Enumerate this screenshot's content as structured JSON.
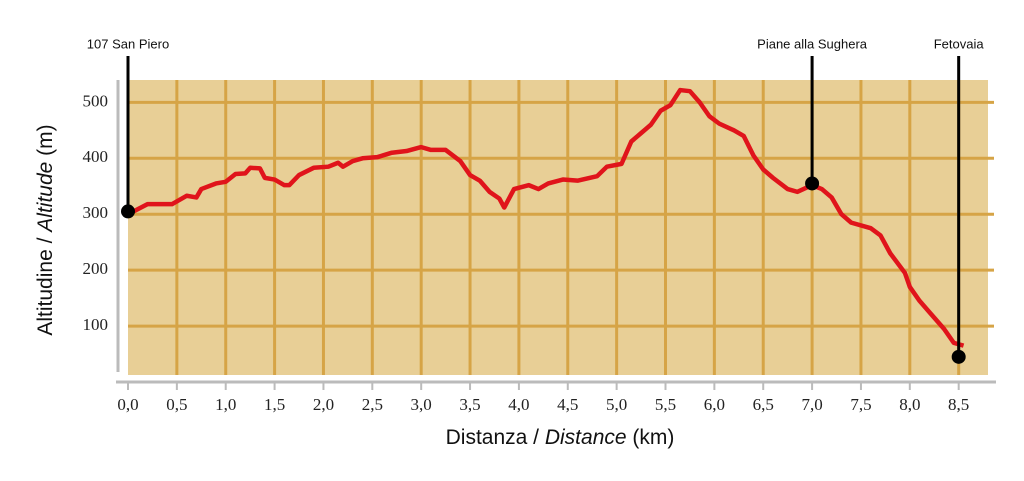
{
  "chart_data": {
    "type": "line",
    "xlabel": [
      "Distanza / ",
      "Distance",
      " (km)"
    ],
    "ylabel": [
      "Altitudine / ",
      "Altitude",
      " (m)"
    ],
    "x": [
      0.0,
      0.2,
      0.45,
      0.6,
      0.7,
      0.75,
      0.9,
      1.0,
      1.1,
      1.2,
      1.25,
      1.35,
      1.4,
      1.5,
      1.6,
      1.65,
      1.75,
      1.9,
      2.05,
      2.15,
      2.2,
      2.3,
      2.4,
      2.55,
      2.7,
      2.85,
      3.0,
      3.1,
      3.25,
      3.4,
      3.5,
      3.6,
      3.7,
      3.8,
      3.85,
      3.95,
      4.1,
      4.2,
      4.3,
      4.45,
      4.6,
      4.8,
      4.9,
      5.05,
      5.15,
      5.25,
      5.35,
      5.45,
      5.55,
      5.65,
      5.75,
      5.85,
      5.95,
      6.05,
      6.2,
      6.3,
      6.4,
      6.5,
      6.6,
      6.75,
      6.85,
      7.0,
      7.1,
      7.2,
      7.3,
      7.4,
      7.6,
      7.7,
      7.8,
      7.95,
      8.0,
      8.1,
      8.2,
      8.35,
      8.45,
      8.55
    ],
    "values": [
      300,
      318,
      318,
      333,
      330,
      345,
      355,
      358,
      372,
      373,
      383,
      382,
      365,
      362,
      352,
      352,
      370,
      383,
      385,
      392,
      385,
      395,
      400,
      402,
      410,
      413,
      420,
      415,
      415,
      395,
      370,
      360,
      340,
      328,
      312,
      345,
      352,
      345,
      355,
      362,
      360,
      368,
      385,
      390,
      430,
      445,
      460,
      485,
      495,
      522,
      520,
      500,
      475,
      462,
      450,
      440,
      405,
      380,
      365,
      345,
      340,
      352,
      345,
      330,
      300,
      285,
      275,
      262,
      230,
      195,
      170,
      145,
      125,
      95,
      70,
      65
    ],
    "color": "#e0141b",
    "xlim": [
      0,
      8.8
    ],
    "ylim": [
      0,
      540
    ],
    "xticks": [
      {
        "value": 0,
        "label": "0,0"
      },
      {
        "value": 0.5,
        "label": "0,5"
      },
      {
        "value": 1,
        "label": "1,0"
      },
      {
        "value": 1.5,
        "label": "1,5"
      },
      {
        "value": 2,
        "label": "2,0"
      },
      {
        "value": 2.5,
        "label": "2,5"
      },
      {
        "value": 3,
        "label": "3,0"
      },
      {
        "value": 3.5,
        "label": "3,5"
      },
      {
        "value": 4,
        "label": "4,0"
      },
      {
        "value": 4.5,
        "label": "4,5"
      },
      {
        "value": 5,
        "label": "5,0"
      },
      {
        "value": 5.5,
        "label": "5,5"
      },
      {
        "value": 6,
        "label": "6,0"
      },
      {
        "value": 6.5,
        "label": "6,5"
      },
      {
        "value": 7,
        "label": "7,0"
      },
      {
        "value": 7.5,
        "label": "7,5"
      },
      {
        "value": 8,
        "label": "8,0"
      },
      {
        "value": 8.5,
        "label": "8,5"
      }
    ],
    "yticks": [
      100,
      200,
      300,
      400,
      500
    ],
    "grid": true,
    "annotations": [
      {
        "label": "107 San Piero",
        "x": 0,
        "y": 305
      },
      {
        "label": "Piane alla Sughera",
        "x": 7.0,
        "y": 355
      },
      {
        "label": "Fetovaia",
        "x": 8.5,
        "y": 45
      }
    ]
  }
}
